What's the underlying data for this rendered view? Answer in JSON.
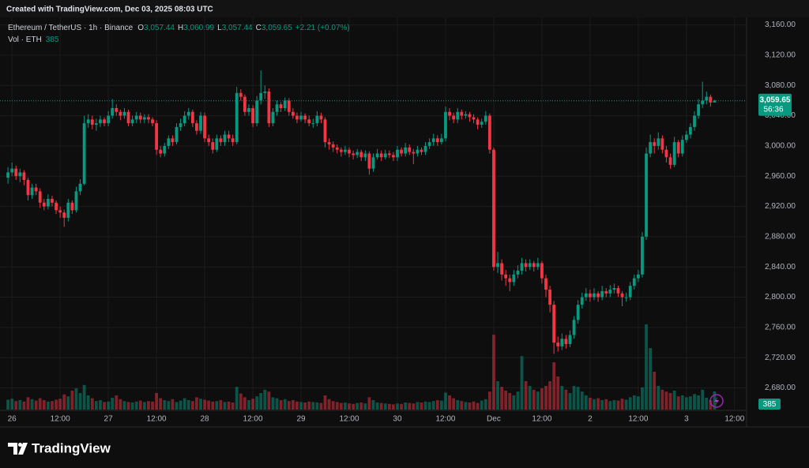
{
  "page": {
    "created": "Created with TradingView.com, Dec 03, 2025 08:03 UTC",
    "brand": "TradingView"
  },
  "chart_data": {
    "type": "candlestick",
    "title": "Ethereum / TetherUS · 1h · Binance",
    "legend_ohlc": [
      {
        "key": "O",
        "label": "3,057.44"
      },
      {
        "key": "H",
        "label": "3,060.99"
      },
      {
        "key": "L",
        "label": "3,057.44"
      },
      {
        "key": "C",
        "label": "3,059.65"
      }
    ],
    "change_label": "+2.21 (+0.07%)",
    "volume_title": "Vol · ETH",
    "last_price_label": "3,059.65",
    "countdown": "56:36",
    "up_color": "#089981",
    "down_color": "#f23645",
    "grid": true,
    "xlim": [
      -1,
      183
    ],
    "xticks": [
      {
        "value": 1,
        "label": "26"
      },
      {
        "value": 13,
        "label": "12:00"
      },
      {
        "value": 25,
        "label": "27"
      },
      {
        "value": 37,
        "label": "12:00"
      },
      {
        "value": 49,
        "label": "28"
      },
      {
        "value": 61,
        "label": "12:00"
      },
      {
        "value": 73,
        "label": "29"
      },
      {
        "value": 85,
        "label": "12:00"
      },
      {
        "value": 97,
        "label": "30"
      },
      {
        "value": 109,
        "label": "12:00"
      },
      {
        "value": 121,
        "label": "Dec"
      },
      {
        "value": 133,
        "label": "12:00"
      },
      {
        "value": 145,
        "label": "2"
      },
      {
        "value": 157,
        "label": "12:00"
      },
      {
        "value": 169,
        "label": "3"
      },
      {
        "value": 181,
        "label": "12:00"
      }
    ],
    "ylim": [
      2650,
      3170
    ],
    "yticks": [
      {
        "value": 2680,
        "label": "2,680.00"
      },
      {
        "value": 2720,
        "label": "2,720.00"
      },
      {
        "value": 2760,
        "label": "2,760.00"
      },
      {
        "value": 2800,
        "label": "2,800.00"
      },
      {
        "value": 2840,
        "label": "2,840.00"
      },
      {
        "value": 2880,
        "label": "2,880.00"
      },
      {
        "value": 2920,
        "label": "2,920.00"
      },
      {
        "value": 2960,
        "label": "2,960.00"
      },
      {
        "value": 3000,
        "label": "3,000.00"
      },
      {
        "value": 3040,
        "label": "3,040.00"
      },
      {
        "value": 3080,
        "label": "3,080.00"
      },
      {
        "value": 3120,
        "label": "3,120.00"
      },
      {
        "value": 3160,
        "label": "3,160.00"
      }
    ],
    "candles": [
      [
        2958,
        2972,
        2950,
        2965
      ],
      [
        2965,
        2978,
        2960,
        2970
      ],
      [
        2970,
        2974,
        2955,
        2960
      ],
      [
        2960,
        2970,
        2952,
        2965
      ],
      [
        2965,
        2968,
        2948,
        2955
      ],
      [
        2955,
        2958,
        2928,
        2935
      ],
      [
        2935,
        2950,
        2930,
        2945
      ],
      [
        2945,
        2950,
        2935,
        2940
      ],
      [
        2940,
        2944,
        2918,
        2925
      ],
      [
        2925,
        2930,
        2915,
        2920
      ],
      [
        2920,
        2936,
        2916,
        2930
      ],
      [
        2930,
        2934,
        2920,
        2925
      ],
      [
        2925,
        2928,
        2910,
        2915
      ],
      [
        2915,
        2920,
        2905,
        2912
      ],
      [
        2912,
        2916,
        2893,
        2905
      ],
      [
        2905,
        2930,
        2900,
        2925
      ],
      [
        2925,
        2928,
        2910,
        2915
      ],
      [
        2915,
        2946,
        2912,
        2940
      ],
      [
        2940,
        2956,
        2935,
        2950
      ],
      [
        2950,
        3040,
        2948,
        3030
      ],
      [
        3030,
        3042,
        3024,
        3035
      ],
      [
        3035,
        3040,
        3022,
        3028
      ],
      [
        3028,
        3036,
        3020,
        3030
      ],
      [
        3030,
        3040,
        3025,
        3035
      ],
      [
        3035,
        3038,
        3026,
        3030
      ],
      [
        3030,
        3046,
        3026,
        3040
      ],
      [
        3040,
        3062,
        3036,
        3050
      ],
      [
        3050,
        3055,
        3040,
        3045
      ],
      [
        3045,
        3048,
        3034,
        3040
      ],
      [
        3040,
        3050,
        3036,
        3045
      ],
      [
        3045,
        3048,
        3026,
        3030
      ],
      [
        3030,
        3040,
        3026,
        3035
      ],
      [
        3035,
        3045,
        3030,
        3040
      ],
      [
        3040,
        3044,
        3030,
        3035
      ],
      [
        3035,
        3042,
        3030,
        3038
      ],
      [
        3038,
        3042,
        3030,
        3035
      ],
      [
        3035,
        3038,
        3026,
        3030
      ],
      [
        3030,
        3034,
        2988,
        2995
      ],
      [
        2995,
        3000,
        2985,
        2990
      ],
      [
        2990,
        3004,
        2986,
        3000
      ],
      [
        3000,
        3014,
        2996,
        3010
      ],
      [
        3010,
        3014,
        3000,
        3005
      ],
      [
        3005,
        3030,
        3002,
        3025
      ],
      [
        3025,
        3036,
        3020,
        3030
      ],
      [
        3030,
        3046,
        3026,
        3040
      ],
      [
        3040,
        3050,
        3035,
        3045
      ],
      [
        3045,
        3048,
        3025,
        3030
      ],
      [
        3030,
        3034,
        3015,
        3020
      ],
      [
        3020,
        3045,
        3016,
        3040
      ],
      [
        3040,
        3044,
        3005,
        3010
      ],
      [
        3010,
        3015,
        3000,
        3005
      ],
      [
        3005,
        3010,
        2990,
        2995
      ],
      [
        2995,
        3015,
        2992,
        3010
      ],
      [
        3010,
        3014,
        3000,
        3005
      ],
      [
        3005,
        3020,
        3000,
        3015
      ],
      [
        3015,
        3020,
        3005,
        3010
      ],
      [
        3010,
        3015,
        3000,
        3005
      ],
      [
        3005,
        3078,
        3002,
        3070
      ],
      [
        3070,
        3075,
        3060,
        3065
      ],
      [
        3065,
        3068,
        3040,
        3045
      ],
      [
        3045,
        3055,
        3040,
        3050
      ],
      [
        3050,
        3054,
        3025,
        3030
      ],
      [
        3030,
        3066,
        3026,
        3060
      ],
      [
        3060,
        3100,
        3055,
        3070
      ],
      [
        3070,
        3080,
        3062,
        3072
      ],
      [
        3072,
        3076,
        3025,
        3030
      ],
      [
        3030,
        3050,
        3026,
        3045
      ],
      [
        3045,
        3060,
        3040,
        3055
      ],
      [
        3055,
        3058,
        3045,
        3050
      ],
      [
        3050,
        3064,
        3046,
        3060
      ],
      [
        3060,
        3063,
        3040,
        3045
      ],
      [
        3045,
        3050,
        3036,
        3040
      ],
      [
        3040,
        3044,
        3030,
        3035
      ],
      [
        3035,
        3045,
        3032,
        3040
      ],
      [
        3040,
        3043,
        3030,
        3035
      ],
      [
        3035,
        3040,
        3026,
        3030
      ],
      [
        3030,
        3036,
        3024,
        3030
      ],
      [
        3030,
        3046,
        3026,
        3040
      ],
      [
        3040,
        3044,
        3030,
        3035
      ],
      [
        3035,
        3038,
        2998,
        3005
      ],
      [
        3005,
        3010,
        2995,
        3002
      ],
      [
        3002,
        3006,
        2992,
        2998
      ],
      [
        2998,
        3002,
        2990,
        2995
      ],
      [
        2995,
        2998,
        2986,
        2992
      ],
      [
        2992,
        3000,
        2988,
        2995
      ],
      [
        2995,
        2998,
        2985,
        2990
      ],
      [
        2990,
        2994,
        2982,
        2988
      ],
      [
        2988,
        2996,
        2984,
        2992
      ],
      [
        2992,
        2995,
        2980,
        2985
      ],
      [
        2985,
        2994,
        2980,
        2990
      ],
      [
        2990,
        2993,
        2962,
        2970
      ],
      [
        2970,
        2990,
        2966,
        2985
      ],
      [
        2985,
        2996,
        2982,
        2990
      ],
      [
        2990,
        2994,
        2980,
        2985
      ],
      [
        2985,
        2995,
        2982,
        2990
      ],
      [
        2990,
        2994,
        2984,
        2988
      ],
      [
        2988,
        2992,
        2980,
        2985
      ],
      [
        2985,
        3000,
        2980,
        2995
      ],
      [
        2995,
        2998,
        2986,
        2990
      ],
      [
        2990,
        3004,
        2986,
        2998
      ],
      [
        2998,
        3002,
        2988,
        2992
      ],
      [
        2992,
        2996,
        2976,
        2990
      ],
      [
        2990,
        3000,
        2986,
        2995
      ],
      [
        2995,
        2998,
        2988,
        2992
      ],
      [
        2992,
        3005,
        2988,
        3000
      ],
      [
        3000,
        3010,
        2996,
        3005
      ],
      [
        3005,
        3016,
        3000,
        3010
      ],
      [
        3010,
        3014,
        3000,
        3005
      ],
      [
        3005,
        3016,
        3002,
        3010
      ],
      [
        3010,
        3052,
        3006,
        3045
      ],
      [
        3045,
        3050,
        3034,
        3040
      ],
      [
        3040,
        3044,
        3030,
        3035
      ],
      [
        3035,
        3050,
        3030,
        3045
      ],
      [
        3045,
        3048,
        3035,
        3040
      ],
      [
        3040,
        3046,
        3036,
        3042
      ],
      [
        3042,
        3045,
        3032,
        3038
      ],
      [
        3038,
        3042,
        3030,
        3035
      ],
      [
        3035,
        3038,
        3022,
        3028
      ],
      [
        3028,
        3036,
        3024,
        3032
      ],
      [
        3032,
        3046,
        3028,
        3040
      ],
      [
        3040,
        3043,
        2990,
        2995
      ],
      [
        2995,
        2998,
        2835,
        2840
      ],
      [
        2840,
        2860,
        2832,
        2845
      ],
      [
        2845,
        2850,
        2822,
        2830
      ],
      [
        2830,
        2836,
        2815,
        2825
      ],
      [
        2825,
        2830,
        2808,
        2820
      ],
      [
        2820,
        2836,
        2815,
        2830
      ],
      [
        2830,
        2842,
        2825,
        2835
      ],
      [
        2835,
        2852,
        2830,
        2845
      ],
      [
        2845,
        2850,
        2834,
        2840
      ],
      [
        2840,
        2850,
        2836,
        2845
      ],
      [
        2845,
        2848,
        2834,
        2840
      ],
      [
        2840,
        2852,
        2836,
        2845
      ],
      [
        2845,
        2848,
        2818,
        2825
      ],
      [
        2825,
        2830,
        2800,
        2810
      ],
      [
        2810,
        2815,
        2780,
        2790
      ],
      [
        2790,
        2795,
        2725,
        2740
      ],
      [
        2740,
        2748,
        2728,
        2735
      ],
      [
        2735,
        2752,
        2730,
        2745
      ],
      [
        2745,
        2750,
        2732,
        2738
      ],
      [
        2738,
        2756,
        2734,
        2750
      ],
      [
        2750,
        2775,
        2745,
        2770
      ],
      [
        2770,
        2796,
        2765,
        2790
      ],
      [
        2790,
        2806,
        2785,
        2800
      ],
      [
        2800,
        2812,
        2795,
        2805
      ],
      [
        2805,
        2810,
        2794,
        2800
      ],
      [
        2800,
        2812,
        2796,
        2805
      ],
      [
        2805,
        2808,
        2794,
        2800
      ],
      [
        2800,
        2815,
        2796,
        2808
      ],
      [
        2808,
        2812,
        2800,
        2805
      ],
      [
        2805,
        2816,
        2800,
        2810
      ],
      [
        2810,
        2818,
        2805,
        2812
      ],
      [
        2812,
        2815,
        2800,
        2805
      ],
      [
        2805,
        2808,
        2788,
        2800
      ],
      [
        2800,
        2806,
        2794,
        2800
      ],
      [
        2800,
        2820,
        2796,
        2815
      ],
      [
        2815,
        2830,
        2810,
        2825
      ],
      [
        2825,
        2836,
        2820,
        2830
      ],
      [
        2830,
        2886,
        2826,
        2880
      ],
      [
        2880,
        2998,
        2876,
        2990
      ],
      [
        2990,
        3015,
        2985,
        3005
      ],
      [
        3005,
        3010,
        2990,
        3000
      ],
      [
        3000,
        3018,
        2995,
        3010
      ],
      [
        3010,
        3014,
        2990,
        2995
      ],
      [
        2995,
        3000,
        2978,
        2985
      ],
      [
        2985,
        2990,
        2970,
        2975
      ],
      [
        2975,
        3012,
        2972,
        3005
      ],
      [
        3005,
        3008,
        2985,
        2990
      ],
      [
        2990,
        3014,
        2986,
        3008
      ],
      [
        3008,
        3020,
        3004,
        3015
      ],
      [
        3015,
        3030,
        3010,
        3025
      ],
      [
        3025,
        3046,
        3020,
        3040
      ],
      [
        3040,
        3062,
        3036,
        3055
      ],
      [
        3055,
        3085,
        3050,
        3060
      ],
      [
        3060,
        3072,
        3055,
        3065
      ],
      [
        3065,
        3068,
        3052,
        3057.44
      ],
      [
        3057.44,
        3060.99,
        3057.44,
        3059.65
      ]
    ],
    "volume": [
      210,
      230,
      180,
      200,
      170,
      260,
      220,
      190,
      240,
      200,
      170,
      180,
      210,
      230,
      320,
      280,
      400,
      450,
      350,
      520,
      300,
      240,
      180,
      200,
      160,
      170,
      250,
      300,
      220,
      180,
      160,
      150,
      170,
      190,
      160,
      180,
      170,
      350,
      240,
      200,
      180,
      220,
      160,
      190,
      240,
      200,
      180,
      260,
      230,
      210,
      190,
      170,
      180,
      200,
      160,
      170,
      150,
      480,
      340,
      260,
      200,
      230,
      280,
      350,
      420,
      380,
      260,
      240,
      200,
      220,
      180,
      200,
      170,
      160,
      150,
      170,
      160,
      150,
      140,
      300,
      220,
      180,
      160,
      140,
      150,
      130,
      120,
      140,
      150,
      130,
      260,
      200,
      150,
      140,
      130,
      120,
      110,
      130,
      120,
      150,
      140,
      130,
      160,
      150,
      170,
      160,
      180,
      200,
      190,
      360,
      300,
      240,
      200,
      180,
      160,
      150,
      170,
      140,
      190,
      220,
      380,
      1580,
      600,
      480,
      400,
      350,
      300,
      380,
      1130,
      600,
      500,
      420,
      380,
      450,
      500,
      600,
      1000,
      700,
      500,
      420,
      350,
      500,
      480,
      380,
      300,
      250,
      220,
      240,
      200,
      220,
      180,
      200,
      190,
      230,
      210,
      260,
      300,
      280,
      470,
      1800,
      1300,
      800,
      500,
      420,
      380,
      350,
      400,
      280,
      300,
      260,
      280,
      330,
      300,
      420,
      250,
      200,
      385
    ]
  }
}
